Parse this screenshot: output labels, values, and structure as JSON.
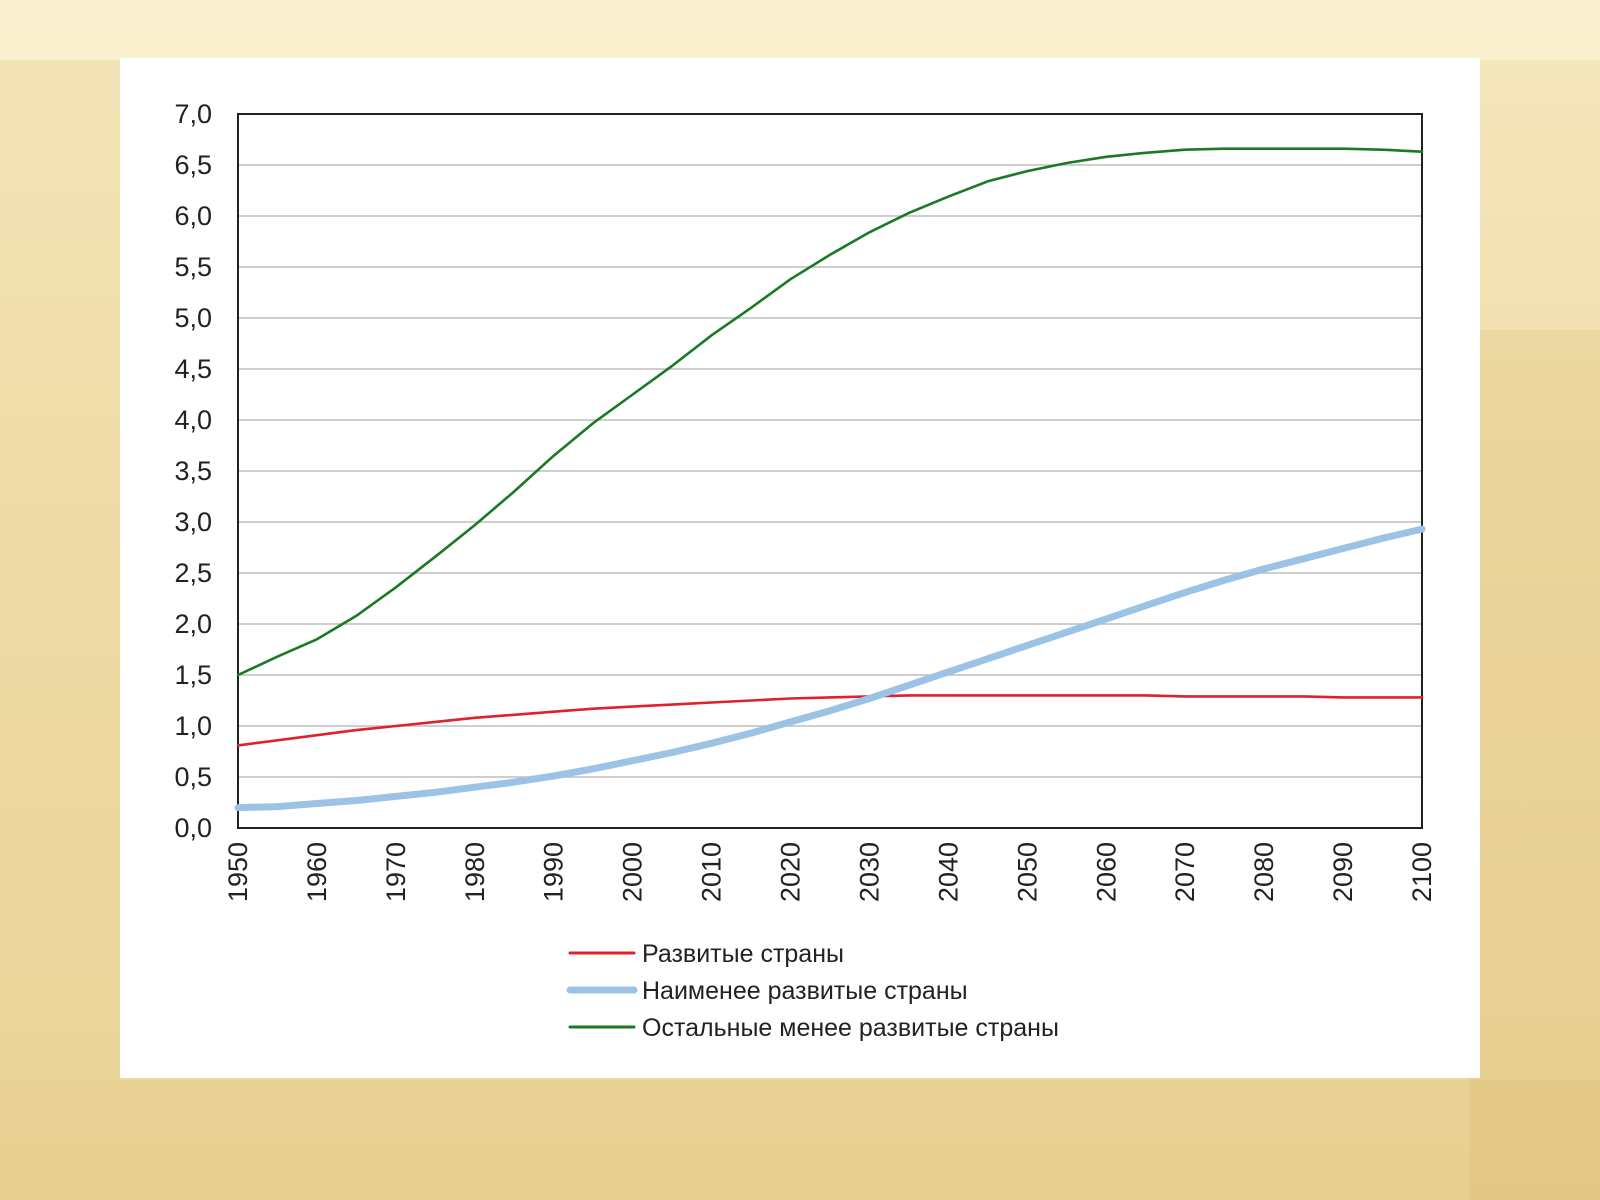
{
  "chart_data": {
    "type": "line",
    "title": "",
    "xlabel": "",
    "ylabel": "",
    "xlim": [
      1950,
      2100
    ],
    "ylim": [
      0,
      7
    ],
    "grid": true,
    "legend_position": "bottom",
    "y_ticks": [
      "0,0",
      "0,5",
      "1,0",
      "1,5",
      "2,0",
      "2,5",
      "3,0",
      "3,5",
      "4,0",
      "4,5",
      "5,0",
      "5,5",
      "6,0",
      "6,5",
      "7,0"
    ],
    "x_ticks": [
      "1950",
      "1960",
      "1970",
      "1980",
      "1990",
      "2000",
      "2010",
      "2020",
      "2030",
      "2040",
      "2050",
      "2060",
      "2070",
      "2080",
      "2090",
      "2100"
    ],
    "x": [
      1950,
      1955,
      1960,
      1965,
      1970,
      1975,
      1980,
      1985,
      1990,
      1995,
      2000,
      2005,
      2010,
      2015,
      2020,
      2025,
      2030,
      2035,
      2040,
      2045,
      2050,
      2055,
      2060,
      2065,
      2070,
      2075,
      2080,
      2085,
      2090,
      2095,
      2100
    ],
    "series": [
      {
        "name": "Развитые страны",
        "color": "#e0202a",
        "width": "thin",
        "values": [
          0.81,
          0.86,
          0.91,
          0.96,
          1.0,
          1.04,
          1.08,
          1.11,
          1.14,
          1.17,
          1.19,
          1.21,
          1.23,
          1.25,
          1.27,
          1.28,
          1.29,
          1.3,
          1.3,
          1.3,
          1.3,
          1.3,
          1.3,
          1.3,
          1.29,
          1.29,
          1.29,
          1.29,
          1.28,
          1.28,
          1.28
        ]
      },
      {
        "name": "Наименее развитые страны",
        "color": "#9cc3e6",
        "width": "thick",
        "values": [
          0.2,
          0.21,
          0.24,
          0.27,
          0.31,
          0.35,
          0.4,
          0.45,
          0.51,
          0.58,
          0.66,
          0.74,
          0.83,
          0.93,
          1.04,
          1.15,
          1.27,
          1.4,
          1.53,
          1.66,
          1.79,
          1.92,
          2.05,
          2.18,
          2.31,
          2.43,
          2.54,
          2.64,
          2.74,
          2.84,
          2.93
        ]
      },
      {
        "name": "Остальные менее развитые страны",
        "color": "#1a7a24",
        "width": "thin",
        "values": [
          1.5,
          1.68,
          1.85,
          2.08,
          2.36,
          2.66,
          2.97,
          3.3,
          3.65,
          3.97,
          4.25,
          4.53,
          4.83,
          5.1,
          5.38,
          5.62,
          5.84,
          6.03,
          6.19,
          6.34,
          6.44,
          6.52,
          6.58,
          6.62,
          6.65,
          6.66,
          6.66,
          6.66,
          6.66,
          6.65,
          6.63
        ]
      }
    ]
  }
}
